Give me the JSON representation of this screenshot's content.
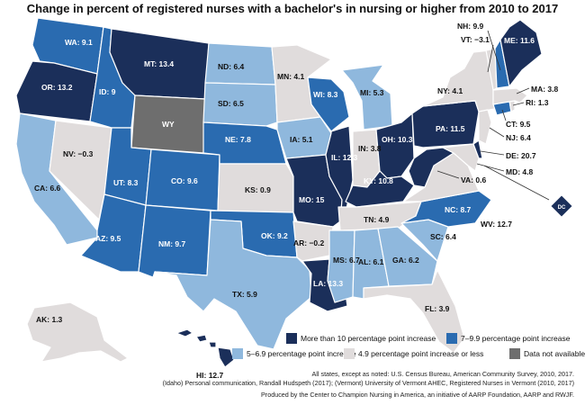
{
  "title": "Change in percent of registered nurses with a bachelor's in nursing or higher from 2010 to 2017",
  "colors": {
    "c1": "#1b2f5a",
    "c2": "#2a6bb0",
    "c3": "#8fb8dd",
    "c4": "#e0dcdc",
    "na": "#6e6e6e"
  },
  "legend": {
    "c1": "More than 10 percentage point increase",
    "c2": "7–9.9 percentage point increase",
    "c3": "5–6.9 percentage point increase",
    "c4": "4.9 percentage point increase or less",
    "na": "Data not available"
  },
  "states": {
    "WA": "WA: 9.1",
    "OR": "OR: 13.2",
    "CA": "CA: 6.6",
    "NV": "NV: −0.3",
    "ID": "ID: 9",
    "MT": "MT: 13.4",
    "WY": "WY",
    "UT": "UT: 8.3",
    "AZ": "AZ: 9.5",
    "CO": "CO: 9.6",
    "NM": "NM: 9.7",
    "ND": "ND: 6.4",
    "SD": "SD: 6.5",
    "NE": "NE: 7.8",
    "KS": "KS: 0.9",
    "OK": "OK: 9.2",
    "TX": "TX: 5.9",
    "MN": "MN: 4.1",
    "IA": "IA: 5.1",
    "MO": "MO: 15",
    "AR": "AR: −0.2",
    "LA": "LA: 13.3",
    "WI": "WI: 8.3",
    "IL": "IL: 12.3",
    "MI": "MI: 5.3",
    "IN": "IN: 3.8",
    "OH": "OH: 10.3",
    "KY": "KY: 10.8",
    "TN": "TN: 4.9",
    "MS": "MS: 6.7",
    "AL": "AL: 6.1",
    "GA": "GA: 6.2",
    "FL": "FL: 3.9",
    "SC": "SC: 6.4",
    "NC": "NC: 8.7",
    "VA": "VA: 0.6",
    "WV": "WV: 12.7",
    "PA": "PA: 11.5",
    "NY": "NY: 4.1",
    "VT": "VT: −3.1",
    "NH": "NH: 9.9",
    "ME": "ME: 11.6",
    "MA": "MA: 3.8",
    "RI": "RI: 1.3",
    "CT": "CT: 9.5",
    "NJ": "NJ: 6.4",
    "DE": "DE: 20.7",
    "MD": "MD: 4.8",
    "DC": "DC",
    "AK": "AK: 1.3",
    "HI": "HI: 12.7"
  },
  "sources": {
    "line1": "All states, except as noted: U.S. Census Bureau, American Community Survey, 2010, 2017.",
    "line2": "(Idaho) Personal communication, Randall Hudspeth (2017); (Vermont) University of Vermont AHEC, Registered Nurses in Vermont (2010, 2017)",
    "line3": "Produced by the Center to Champion Nursing in America, an initiative of AARP Foundation, AARP and RWJF."
  }
}
